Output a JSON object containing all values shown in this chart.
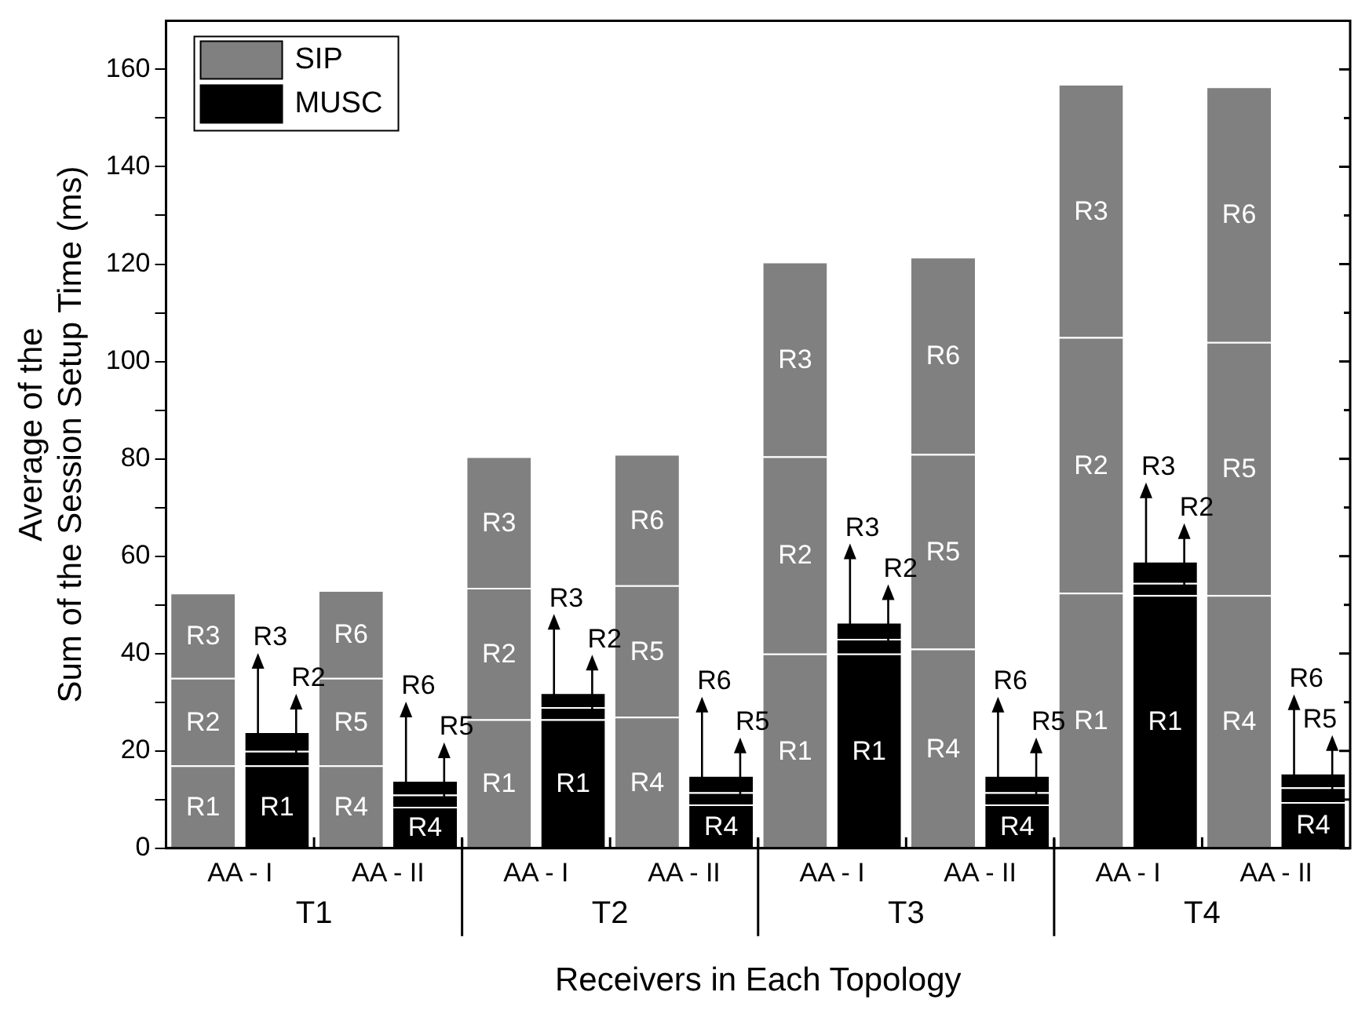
{
  "chart_data": {
    "type": "bar",
    "stacked": true,
    "xlabel": "Receivers in Each Topology",
    "ylabel": "Average of the\nSum of the Session Setup Time (ms)",
    "categories": [
      "AA - I",
      null,
      "AA - II",
      null,
      "AA - I",
      null,
      "AA - II",
      null,
      "AA - I",
      null,
      "AA - II",
      null,
      "AA - I",
      null,
      "AA - II",
      null
    ],
    "annotations": [
      "T1",
      "T2",
      "T3",
      "T4"
    ],
    "ylim": [
      0,
      170
    ],
    "yticks": [
      0,
      {
        "value": 10,
        "label": null
      },
      20,
      {
        "value": 30,
        "label": null
      },
      40,
      {
        "value": 50,
        "label": null
      },
      60,
      {
        "value": 70,
        "label": null
      },
      80,
      {
        "value": 90,
        "label": null
      },
      100,
      {
        "value": 110,
        "label": null
      },
      120,
      {
        "value": 130,
        "label": null
      },
      140,
      {
        "value": 150,
        "label": null
      },
      160
    ],
    "grid": false,
    "legend": "top left",
    "series": [
      {
        "name": "SIP",
        "color": "#808080",
        "values": [
          17,
          null,
          17,
          null,
          26.5,
          null,
          27,
          null,
          40,
          null,
          41,
          null,
          52.5,
          null,
          52,
          null
        ],
        "value_labels": [
          "R1",
          null,
          "R4",
          null,
          "R1",
          null,
          "R4",
          null,
          "R1",
          null,
          "R4",
          null,
          "R1",
          null,
          "R4",
          null
        ]
      },
      {
        "color": "#808080",
        "values": [
          18,
          null,
          18,
          null,
          27,
          null,
          27,
          null,
          40.5,
          null,
          40,
          null,
          52.5,
          null,
          52,
          null
        ],
        "value_labels": [
          "R2",
          null,
          "R5",
          null,
          "R2",
          null,
          "R5",
          null,
          "R2",
          null,
          "R5",
          null,
          "R2",
          null,
          "R5",
          null
        ]
      },
      {
        "color": "#808080",
        "values": [
          17.5,
          null,
          18,
          null,
          27,
          null,
          27,
          null,
          40,
          null,
          40.5,
          null,
          52,
          null,
          52.5,
          null
        ],
        "value_labels": [
          "R3",
          null,
          "R6",
          null,
          "R3",
          null,
          "R6",
          null,
          "R3",
          null,
          "R6",
          null,
          "R3",
          null,
          "R6",
          null
        ]
      },
      {
        "name": "MUSC",
        "color": "#000000",
        "values": [
          null,
          17,
          null,
          8.5,
          null,
          26.5,
          null,
          9,
          null,
          40,
          null,
          9,
          null,
          52,
          null,
          9.5
        ],
        "value_labels": [
          null,
          "R1",
          null,
          "R4",
          null,
          "R1",
          null,
          "R4",
          null,
          "R1",
          null,
          "R4",
          null,
          "R1",
          null,
          "R4"
        ]
      },
      {
        "color": "#000000",
        "values": [
          null,
          3,
          null,
          2.5,
          null,
          2.5,
          null,
          2.5,
          null,
          3,
          null,
          2.5,
          null,
          2.5,
          null,
          3
        ],
        "value_labels": [
          null,
          "R2",
          null,
          "R5",
          null,
          "R2",
          null,
          "R5",
          null,
          "R2",
          null,
          "R5",
          null,
          "R2",
          null,
          "R5"
        ]
      },
      {
        "color": "#000000",
        "values": [
          null,
          4,
          null,
          3,
          null,
          3,
          null,
          3.5,
          null,
          3.5,
          null,
          3.5,
          null,
          4.5,
          null,
          3
        ],
        "value_labels": [
          null,
          "R3",
          null,
          "R6",
          null,
          "R3",
          null,
          "R6",
          null,
          "R3",
          null,
          "R6",
          null,
          "R3",
          null,
          "R6"
        ]
      }
    ]
  }
}
